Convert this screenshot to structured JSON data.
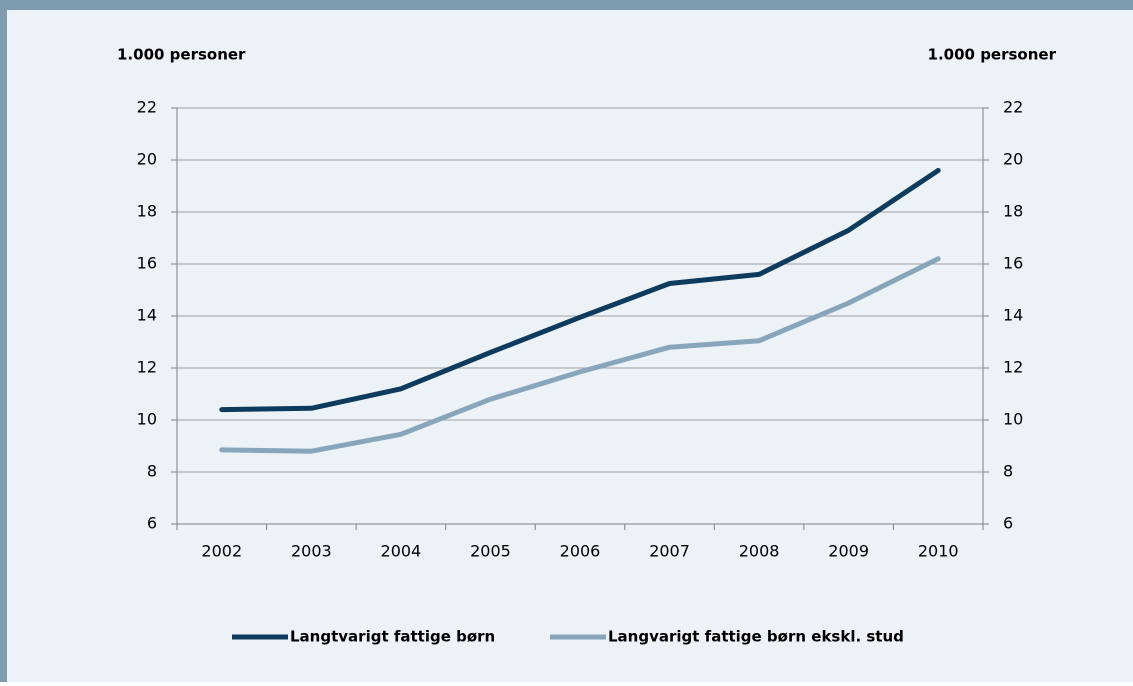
{
  "chart_data": {
    "type": "line",
    "y_label": "1.000 personer",
    "y2_label": "1.000 personer",
    "categories": [
      "2002",
      "2003",
      "2004",
      "2005",
      "2006",
      "2007",
      "2008",
      "2009",
      "2010"
    ],
    "series": [
      {
        "name": "Langtvarigt fattige børn",
        "color": "#0d3b5e",
        "values": [
          10.4,
          10.45,
          11.2,
          12.6,
          13.95,
          15.25,
          15.6,
          17.3,
          19.6
        ]
      },
      {
        "name": "Langvarigt fattige børn ekskl. stud",
        "color": "#88a6bb",
        "values": [
          8.85,
          8.8,
          9.45,
          10.8,
          11.85,
          12.8,
          13.05,
          14.5,
          16.2
        ]
      }
    ],
    "ylim": [
      6,
      22
    ],
    "yticks": [
      6,
      8,
      10,
      12,
      14,
      16,
      18,
      20,
      22
    ],
    "y2lim": [
      6,
      22
    ],
    "y2ticks": [
      6,
      8,
      10,
      12,
      14,
      16,
      18,
      20,
      22
    ],
    "grid": true,
    "legend": "bottom"
  }
}
